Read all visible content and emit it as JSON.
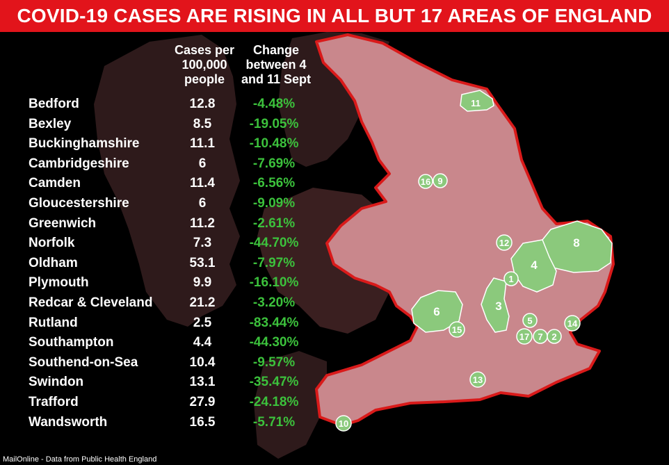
{
  "title": "COVID-19 CASES ARE RISING IN ALL BUT 17 AREAS OF ENGLAND",
  "source": "MailOnline - Data from Public Health England",
  "colors": {
    "banner": "#e2141b",
    "background": "#000000",
    "land_dark": "#3a1f20",
    "england_fill": "#c9878c",
    "england_outline": "#d91a1a",
    "highlight_area": "#8bc97c",
    "change_text": "#3cc13c"
  },
  "chart_data": {
    "type": "table",
    "columns": {
      "area": "",
      "cases": "Cases per 100,000 people",
      "change": "Change between 4 and 11 Sept"
    },
    "rows": [
      {
        "area": "Bedford",
        "cases": "12.8",
        "change": "-4.48%"
      },
      {
        "area": "Bexley",
        "cases": "8.5",
        "change": "-19.05%"
      },
      {
        "area": "Buckinghamshire",
        "cases": "11.1",
        "change": "-10.48%"
      },
      {
        "area": "Cambridgeshire",
        "cases": "6",
        "change": "-7.69%"
      },
      {
        "area": "Camden",
        "cases": "11.4",
        "change": "-6.56%"
      },
      {
        "area": "Gloucestershire",
        "cases": "6",
        "change": "-9.09%"
      },
      {
        "area": "Greenwich",
        "cases": "11.2",
        "change": "-2.61%"
      },
      {
        "area": "Norfolk",
        "cases": "7.3",
        "change": "-44.70%"
      },
      {
        "area": "Oldham",
        "cases": "53.1",
        "change": "-7.97%"
      },
      {
        "area": "Plymouth",
        "cases": "9.9",
        "change": "-16.10%"
      },
      {
        "area": "Redcar & Cleveland",
        "cases": "21.2",
        "change": "-3.20%"
      },
      {
        "area": "Rutland",
        "cases": "2.5",
        "change": "-83.44%"
      },
      {
        "area": "Southampton",
        "cases": "4.4",
        "change": "-44.30%"
      },
      {
        "area": "Southend-on-Sea",
        "cases": "10.4",
        "change": "-9.57%"
      },
      {
        "area": "Swindon",
        "cases": "13.1",
        "change": "-35.47%"
      },
      {
        "area": "Trafford",
        "cases": "27.9",
        "change": "-24.18%"
      },
      {
        "area": "Wandsworth",
        "cases": "16.5",
        "change": "-5.71%"
      }
    ],
    "map_markers": [
      "1",
      "2",
      "3",
      "4",
      "5",
      "6",
      "7",
      "8",
      "9",
      "10",
      "11",
      "12",
      "13",
      "14",
      "15",
      "16",
      "17"
    ]
  }
}
